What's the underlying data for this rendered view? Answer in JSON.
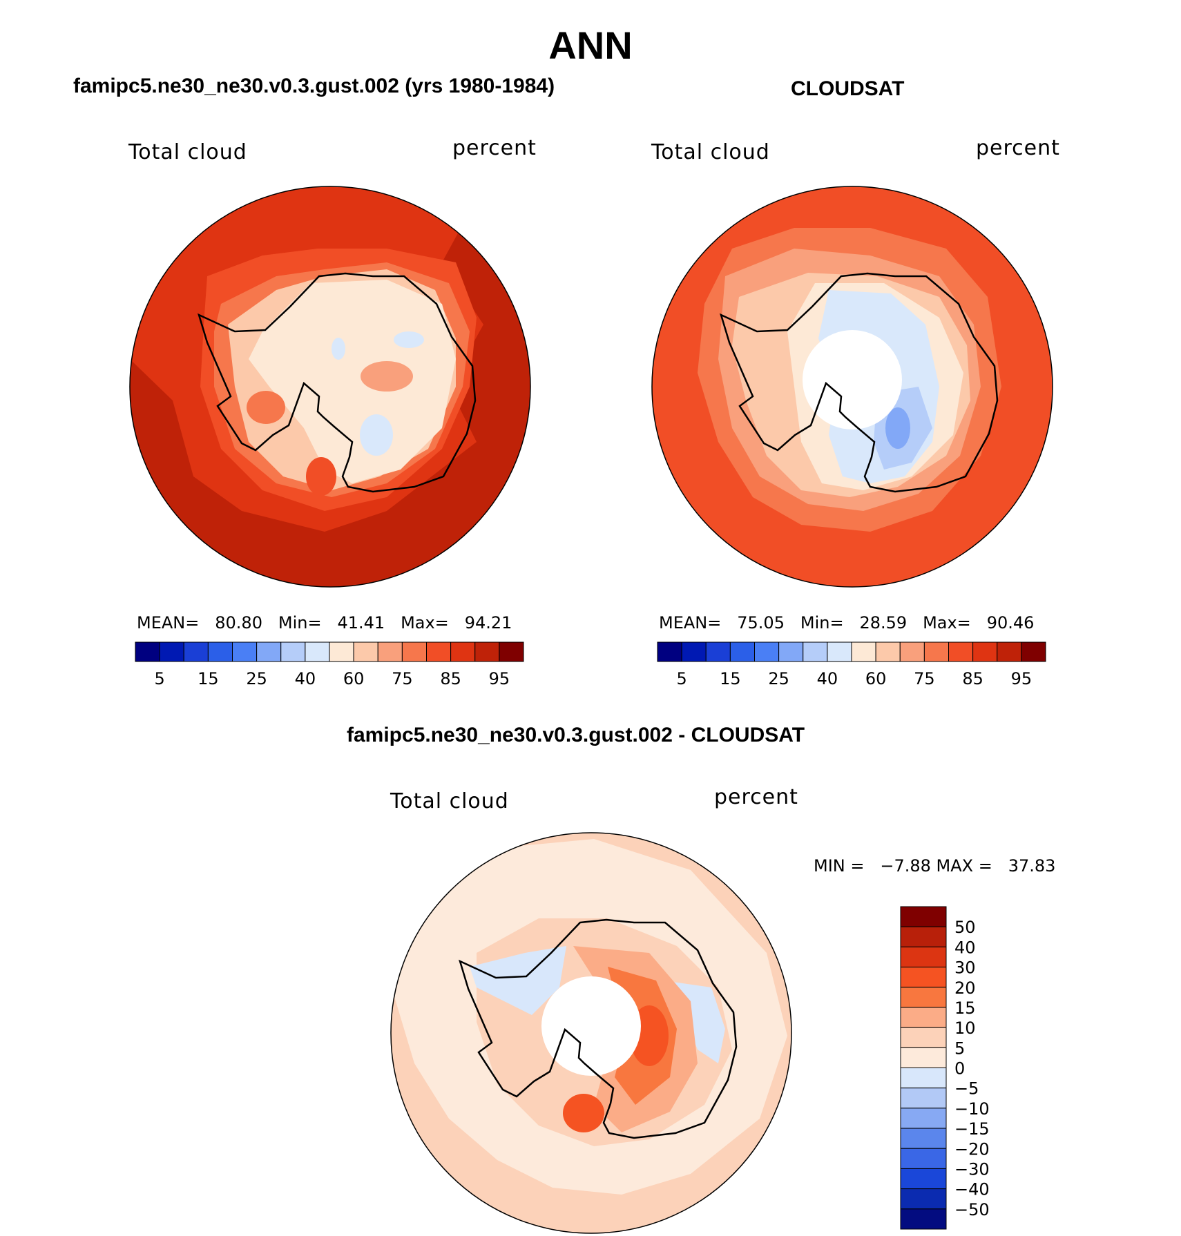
{
  "title": "ANN",
  "panels": [
    {
      "title": "famipc5.ne30_ne30.v0.3.gust.002 (yrs 1980-1984)",
      "left_label": "Total cloud",
      "right_label": "percent",
      "stats": {
        "mean_label": "MEAN=",
        "mean": "80.80",
        "min_label": "Min=",
        "min": "41.41",
        "max_label": "Max=",
        "max": "94.21"
      }
    },
    {
      "title": "CLOUDSAT",
      "left_label": "Total cloud",
      "right_label": "percent",
      "stats": {
        "mean_label": "MEAN=",
        "mean": "75.05",
        "min_label": "Min=",
        "min": "28.59",
        "max_label": "Max=",
        "max": "90.46"
      }
    },
    {
      "title": "famipc5.ne30_ne30.v0.3.gust.002 - CLOUDSAT",
      "left_label": "Total cloud",
      "right_label": "percent",
      "stats_text": "MIN =   −7.88 MAX =   37.83"
    }
  ],
  "chart_data": [
    {
      "type": "heatmap",
      "projection": "south polar stereographic",
      "title": "famipc5.ne30_ne30.v0.3.gust.002 (yrs 1980-1984)",
      "variable": "Total cloud",
      "units": "percent",
      "mean": 80.8,
      "min": 41.41,
      "max": 94.21,
      "colorbar": {
        "orientation": "horizontal",
        "tick_labels": [
          "5",
          "15",
          "25",
          "40",
          "60",
          "75",
          "85",
          "95"
        ],
        "colors": [
          "#000080",
          "#0019b3",
          "#1a3fd6",
          "#2b5fe8",
          "#4a7ff5",
          "#82a8f7",
          "#b5cdf9",
          "#d9e8fb",
          "#fde9d6",
          "#fcc9aa",
          "#f9a07c",
          "#f6774c",
          "#f14e26",
          "#df3412",
          "#bf2208",
          "#7f0000"
        ]
      },
      "regions": {
        "coast_band": 60,
        "interior": 60,
        "ocean_ring_near": 85,
        "ocean_far": 90
      }
    },
    {
      "type": "heatmap",
      "projection": "south polar stereographic",
      "title": "CLOUDSAT",
      "variable": "Total cloud",
      "units": "percent",
      "mean": 75.05,
      "min": 28.59,
      "max": 90.46,
      "colorbar": {
        "orientation": "horizontal",
        "tick_labels": [
          "5",
          "15",
          "25",
          "40",
          "60",
          "75",
          "85",
          "95"
        ],
        "colors": [
          "#000080",
          "#0019b3",
          "#1a3fd6",
          "#2b5fe8",
          "#4a7ff5",
          "#82a8f7",
          "#b5cdf9",
          "#d9e8fb",
          "#fde9d6",
          "#fcc9aa",
          "#f9a07c",
          "#f6774c",
          "#f14e26",
          "#df3412",
          "#bf2208",
          "#7f0000"
        ]
      },
      "missing_data": "pole hole"
    },
    {
      "type": "heatmap",
      "projection": "south polar stereographic",
      "title": "famipc5.ne30_ne30.v0.3.gust.002 - CLOUDSAT",
      "variable": "Total cloud",
      "units": "percent",
      "min": -7.88,
      "max": 37.83,
      "colorbar": {
        "orientation": "vertical",
        "tick_labels": [
          "50",
          "40",
          "30",
          "20",
          "15",
          "10",
          "5",
          "0",
          "−5",
          "−10",
          "−15",
          "−20",
          "−30",
          "−40",
          "−50"
        ],
        "colors": [
          "#7f0000",
          "#b8200a",
          "#dc3512",
          "#f55322",
          "#f8773f",
          "#fbac87",
          "#fcd2b9",
          "#fdeadb",
          "#d8e7fb",
          "#b2c9f6",
          "#87a9f3",
          "#5b86ec",
          "#3a67e6",
          "#1a47d9",
          "#0b2bb0",
          "#030c80"
        ]
      },
      "missing_data": "pole hole"
    }
  ]
}
